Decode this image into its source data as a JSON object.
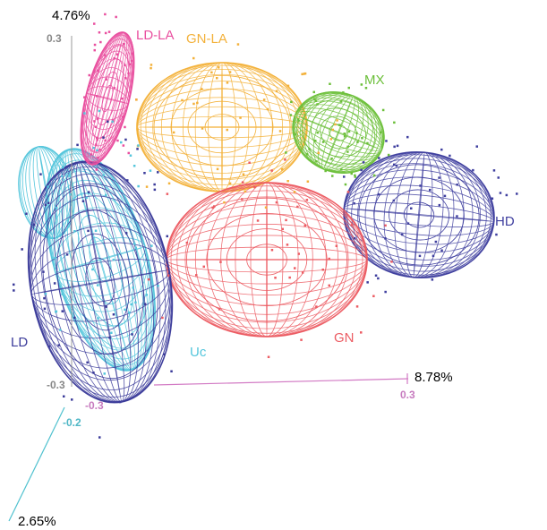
{
  "axes": {
    "y": {
      "percent": "4.76%",
      "top_tick": "0.3",
      "bottom_tick": "-0.3"
    },
    "x": {
      "percent": "8.78%",
      "left_tick": "-0.3",
      "right_tick": "0.3"
    },
    "z": {
      "percent": "2.65%",
      "tick": "-0.2"
    }
  },
  "groups": [
    {
      "label": "LD-LA",
      "color": "#e94f9f"
    },
    {
      "label": "GN-LA",
      "color": "#f3b13a"
    },
    {
      "label": "MX",
      "color": "#6cbf3a"
    },
    {
      "label": "HD",
      "color": "#3f3f9f"
    },
    {
      "label": "GN",
      "color": "#ec5c63"
    },
    {
      "label": "LD",
      "color": "#3b3b9a"
    },
    {
      "label": "Uc",
      "color": "#55c6dc"
    }
  ]
}
